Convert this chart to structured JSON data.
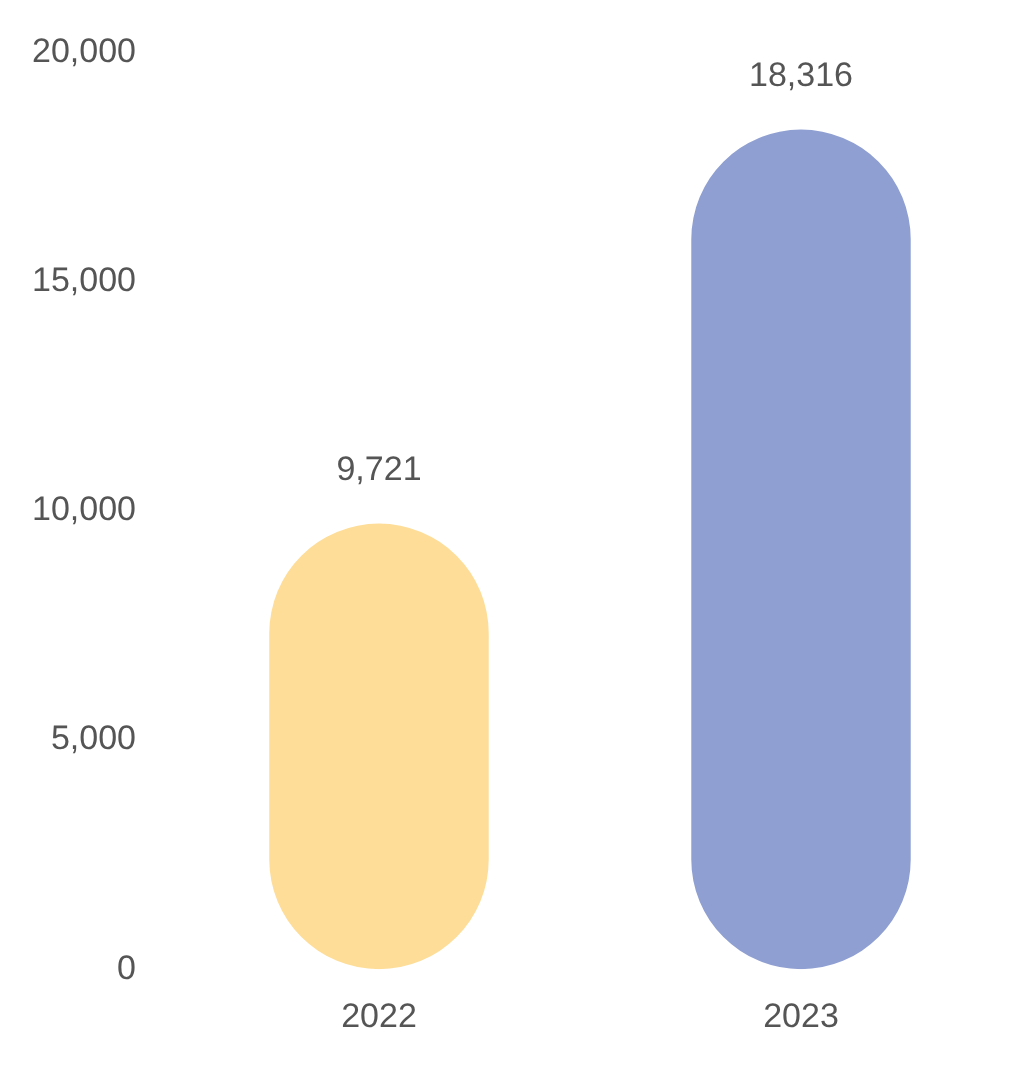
{
  "chart_data": {
    "type": "bar",
    "categories": [
      "2022",
      "2023"
    ],
    "values": [
      9721,
      18316
    ],
    "colors": [
      "#fddd98",
      "#8f9fd1"
    ],
    "value_labels": [
      "9,721",
      "18,316"
    ],
    "ylim": [
      0,
      20000
    ],
    "yticks": [
      {
        "value": 0,
        "label": "0"
      },
      {
        "value": 5000,
        "label": "5,000"
      },
      {
        "value": 10000,
        "label": "10,000"
      },
      {
        "value": 15000,
        "label": "15,000"
      },
      {
        "value": 20000,
        "label": "20,000"
      }
    ],
    "grid": false,
    "legend": false
  }
}
